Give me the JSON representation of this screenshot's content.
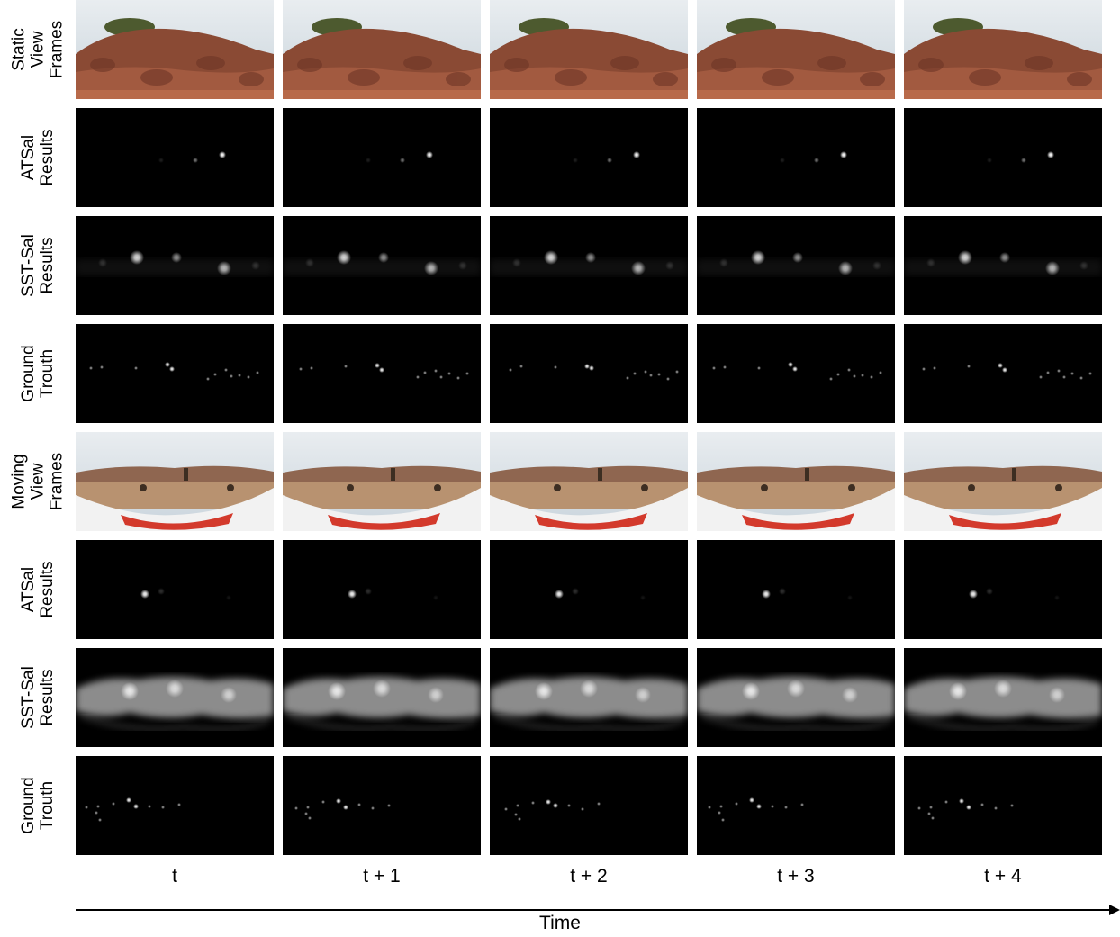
{
  "row_labels": [
    {
      "line1": "Static",
      "line2": "View",
      "line3": "Frames"
    },
    {
      "line1": "ATSal",
      "line2": "Results",
      "line3": ""
    },
    {
      "line1": "SST-Sal",
      "line2": "Results",
      "line3": ""
    },
    {
      "line1": "Ground",
      "line2": "Trouth",
      "line3": ""
    },
    {
      "line1": "Moving",
      "line2": "View",
      "line3": "Frames"
    },
    {
      "line1": "ATSal",
      "line2": "Results",
      "line3": ""
    },
    {
      "line1": "SST-Sal",
      "line2": "Results",
      "line3": ""
    },
    {
      "line1": "Ground",
      "line2": "Trouth",
      "line3": ""
    }
  ],
  "column_labels": [
    "t",
    "t + 1",
    "t + 2",
    "t + 3",
    "t + 4"
  ],
  "axis_label": "Time",
  "colors": {
    "background": "#ffffff",
    "map_background": "#000000",
    "sky": "#c9d4dc",
    "rock": "#8a4a34",
    "ground": "#b89270",
    "red_banner": "#d33a2c"
  }
}
